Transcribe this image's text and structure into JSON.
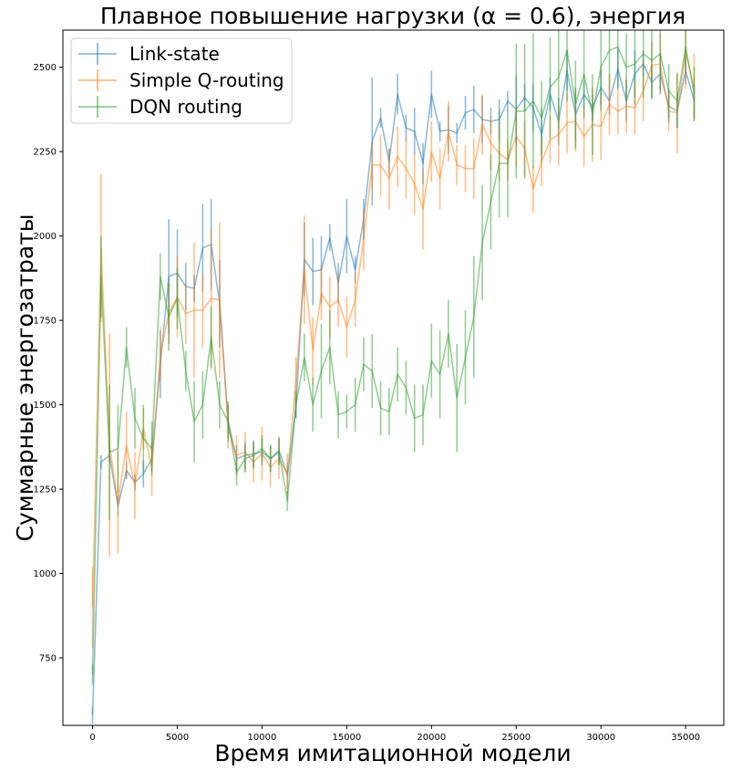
{
  "chart_data": {
    "type": "line",
    "title": "Плавное повышение нагрузки (α = 0.6), энергия",
    "xlabel": "Время имитационной модели",
    "ylabel": "Суммарные энергозатраты",
    "xlim": [
      -1750,
      37250
    ],
    "ylim": [
      550,
      2610
    ],
    "xticks": [
      0,
      5000,
      10000,
      15000,
      20000,
      25000,
      30000,
      35000
    ],
    "yticks": [
      750,
      1000,
      1250,
      1500,
      1750,
      2000,
      2250,
      2500
    ],
    "xtick_labels": [
      "0",
      "5000",
      "10000",
      "15000",
      "20000",
      "25000",
      "30000",
      "35000"
    ],
    "ytick_labels": [
      "750",
      "1000",
      "1250",
      "1500",
      "1750",
      "2000",
      "2250",
      "2500"
    ],
    "grid": false,
    "legend_position": "top-left",
    "error_bars": true,
    "x": [
      0,
      500,
      1000,
      1500,
      2000,
      2500,
      3000,
      3500,
      4000,
      4500,
      5000,
      5500,
      6000,
      6500,
      7000,
      7500,
      8000,
      8500,
      9000,
      9500,
      10000,
      10500,
      11000,
      11500,
      12000,
      12500,
      13000,
      13500,
      14000,
      14500,
      15000,
      15500,
      16000,
      16500,
      17000,
      17500,
      18000,
      18500,
      19000,
      19500,
      20000,
      20500,
      21000,
      21500,
      22000,
      22500,
      23000,
      23500,
      24000,
      24500,
      25000,
      25500,
      26000,
      26500,
      27000,
      27500,
      28000,
      28500,
      29000,
      29500,
      30000,
      30500,
      31000,
      31500,
      32000,
      32500,
      33000,
      33500,
      34000,
      34500,
      35000,
      35500
    ],
    "series": [
      {
        "name": "Link-state",
        "color": "#1f77b4",
        "values": [
          580,
          1330,
          1350,
          1200,
          1305,
          1270,
          1295,
          1340,
          1620,
          1880,
          1890,
          1850,
          1845,
          1965,
          1975,
          1800,
          1450,
          1340,
          1350,
          1355,
          1360,
          1340,
          1365,
          1290,
          1490,
          1930,
          1895,
          1900,
          1995,
          1860,
          2000,
          1900,
          2050,
          2280,
          2350,
          2220,
          2420,
          2320,
          2310,
          2215,
          2420,
          2310,
          2315,
          2305,
          2365,
          2375,
          2345,
          2340,
          2345,
          2400,
          2375,
          2410,
          2380,
          2300,
          2420,
          2340,
          2490,
          2360,
          2420,
          2380,
          2440,
          2400,
          2495,
          2400,
          2480,
          2510,
          2455,
          2480,
          2385,
          2370,
          2490,
          2400
        ],
        "errors": [
          25,
          20,
          20,
          30,
          25,
          25,
          40,
          40,
          100,
          170,
          130,
          70,
          40,
          130,
          135,
          130,
          50,
          40,
          40,
          40,
          40,
          40,
          40,
          40,
          30,
          110,
          100,
          100,
          40,
          60,
          110,
          40,
          60,
          190,
          30,
          40,
          60,
          40,
          70,
          60,
          70,
          30,
          70,
          30,
          50,
          70,
          70,
          40,
          60,
          30,
          100,
          40,
          70,
          80,
          50,
          70,
          60,
          80,
          40,
          40,
          50,
          40,
          60,
          60,
          70,
          40,
          50,
          60,
          50,
          50,
          40,
          50
        ]
      },
      {
        "name": "Simple Q-routing",
        "color": "#ff7f0e",
        "values": [
          900,
          1965,
          1380,
          1210,
          1380,
          1260,
          1430,
          1310,
          1650,
          1770,
          1820,
          1770,
          1780,
          1780,
          1815,
          1810,
          1430,
          1350,
          1360,
          1330,
          1355,
          1315,
          1340,
          1295,
          1570,
          1900,
          1660,
          1830,
          1790,
          1810,
          1730,
          1810,
          1990,
          2210,
          2210,
          2170,
          2235,
          2200,
          2155,
          2080,
          2250,
          2170,
          2310,
          2210,
          2200,
          2200,
          2330,
          2275,
          2245,
          2225,
          2295,
          2260,
          2140,
          2220,
          2285,
          2300,
          2335,
          2340,
          2295,
          2330,
          2325,
          2390,
          2370,
          2385,
          2380,
          2430,
          2505,
          2510,
          2370,
          2365,
          2545,
          2440
        ],
        "errors": [
          120,
          220,
          330,
          150,
          100,
          100,
          60,
          80,
          80,
          90,
          120,
          90,
          200,
          110,
          210,
          230,
          60,
          60,
          60,
          60,
          80,
          60,
          60,
          60,
          70,
          160,
          100,
          80,
          90,
          80,
          90,
          80,
          90,
          70,
          90,
          90,
          90,
          90,
          90,
          120,
          90,
          90,
          90,
          60,
          70,
          90,
          90,
          80,
          80,
          60,
          90,
          80,
          70,
          70,
          70,
          90,
          90,
          90,
          90,
          110,
          100,
          90,
          70,
          80,
          80,
          90,
          70,
          90,
          60,
          120,
          110,
          100
        ]
      },
      {
        "name": "DQN routing",
        "color": "#2ca02c",
        "values": [
          700,
          1880,
          1360,
          1370,
          1670,
          1460,
          1400,
          1370,
          1880,
          1760,
          1815,
          1600,
          1450,
          1500,
          1700,
          1500,
          1450,
          1300,
          1340,
          1350,
          1370,
          1340,
          1360,
          1215,
          1500,
          1640,
          1500,
          1600,
          1670,
          1470,
          1480,
          1500,
          1620,
          1600,
          1490,
          1480,
          1590,
          1550,
          1460,
          1470,
          1630,
          1590,
          1710,
          1520,
          1640,
          1760,
          1980,
          2100,
          2215,
          2215,
          2370,
          2370,
          2400,
          2350,
          2440,
          2470,
          2550,
          2390,
          2480,
          2360,
          2500,
          2550,
          2560,
          2500,
          2510,
          2540,
          2520,
          2540,
          2430,
          2400,
          2560,
          2420
        ],
        "errors": [
          30,
          120,
          200,
          130,
          60,
          90,
          100,
          80,
          70,
          100,
          90,
          60,
          120,
          100,
          90,
          70,
          60,
          40,
          40,
          40,
          40,
          40,
          40,
          30,
          40,
          70,
          80,
          140,
          110,
          70,
          50,
          80,
          80,
          110,
          80,
          70,
          80,
          80,
          100,
          90,
          110,
          130,
          100,
          160,
          140,
          180,
          170,
          140,
          160,
          160,
          200,
          200,
          200,
          110,
          150,
          150,
          150,
          130,
          130,
          120,
          130,
          110,
          120,
          100,
          120,
          130,
          110,
          110,
          80,
          80,
          70,
          80
        ]
      }
    ]
  }
}
